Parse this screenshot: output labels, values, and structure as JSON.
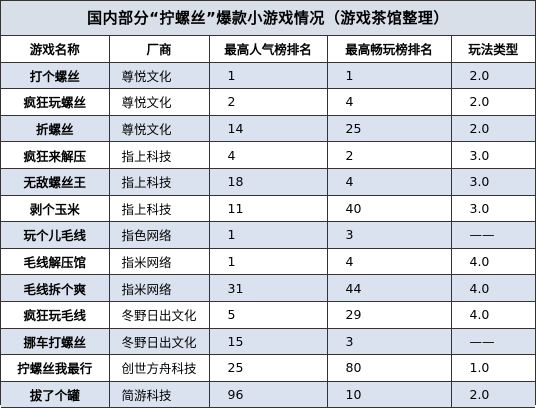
{
  "title": "国内部分“拧螺丝”爆款小游戏情况（游戏茶馆整理）",
  "headers": [
    "游戏名称",
    "厂商",
    "最高人气榜排名",
    "最高畅玩榜排名",
    "玩法类型"
  ],
  "rows": [
    {
      "name": "打个螺丝",
      "company": "尊悦文化",
      "popularity_rank": "1",
      "play_rank": "1",
      "gameplay_type": "2.0"
    },
    {
      "name": "疯狂玩螺丝",
      "company": "尊悦文化",
      "popularity_rank": "2",
      "play_rank": "4",
      "gameplay_type": "2.0"
    },
    {
      "name": "折螺丝",
      "company": "尊悦文化",
      "popularity_rank": "14",
      "play_rank": "25",
      "gameplay_type": "2.0"
    },
    {
      "name": "疯狂来解压",
      "company": "指上科技",
      "popularity_rank": "4",
      "play_rank": "2",
      "gameplay_type": "3.0"
    },
    {
      "name": "无敌螺丝王",
      "company": "指上科技",
      "popularity_rank": "18",
      "play_rank": "4",
      "gameplay_type": "3.0"
    },
    {
      "name": "剥个玉米",
      "company": "指上科技",
      "popularity_rank": "11",
      "play_rank": "40",
      "gameplay_type": "3.0"
    },
    {
      "name": "玩个儿毛线",
      "company": "指色网络",
      "popularity_rank": "1",
      "play_rank": "3",
      "gameplay_type": "——"
    },
    {
      "name": "毛线解压馆",
      "company": "指米网络",
      "popularity_rank": "1",
      "play_rank": "4",
      "gameplay_type": "4.0"
    },
    {
      "name": "毛线拆个爽",
      "company": "指米网络",
      "popularity_rank": "31",
      "play_rank": "44",
      "gameplay_type": "4.0"
    },
    {
      "name": "疯狂玩毛线",
      "company": "冬野日出文化",
      "popularity_rank": "5",
      "play_rank": "29",
      "gameplay_type": "4.0"
    },
    {
      "name": "挪车打螺丝",
      "company": "冬野日出文化",
      "popularity_rank": "15",
      "play_rank": "3",
      "gameplay_type": "——"
    },
    {
      "name": "拧螺丝我最行",
      "company": "创世方舟科技",
      "popularity_rank": "25",
      "play_rank": "80",
      "gameplay_type": "1.0"
    },
    {
      "name": "拔了个罐",
      "company": "简游科技",
      "popularity_rank": "96",
      "play_rank": "10",
      "gameplay_type": "2.0"
    }
  ]
}
